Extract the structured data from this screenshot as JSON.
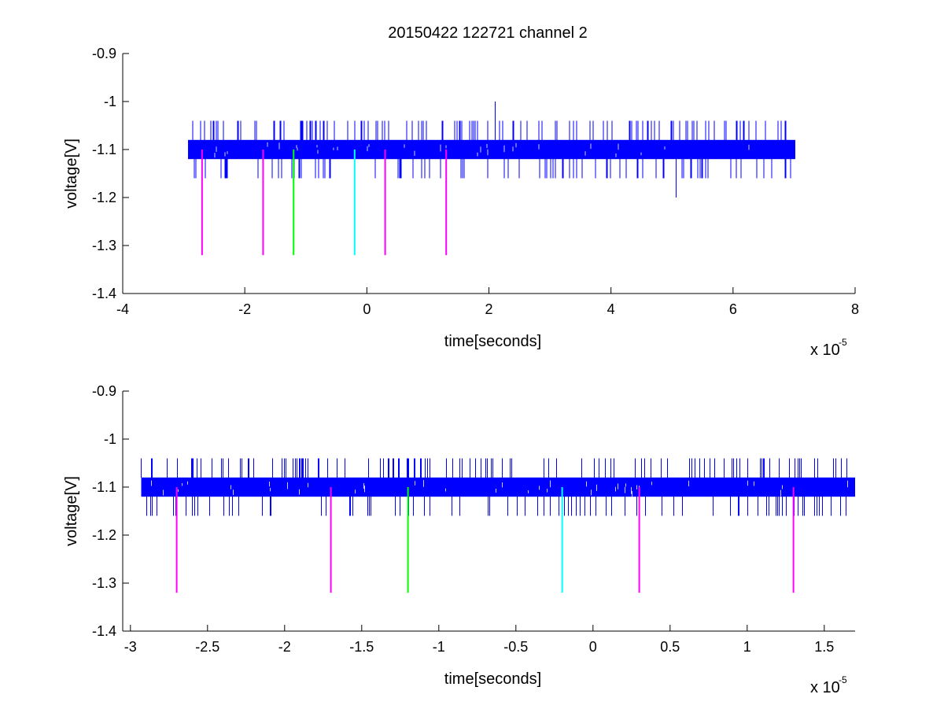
{
  "figure": {
    "title": "20150422 122721 channel 2"
  },
  "colors": {
    "signal": "#0000ff",
    "magenta": "#ff00ff",
    "green": "#00ff00",
    "cyan": "#00ffff",
    "axes": "#000000",
    "background": "#ffffff"
  },
  "chart_data": [
    {
      "type": "line",
      "title": "20150422 122721 channel 2",
      "xlabel": "time[seconds]",
      "ylabel": "voltage[V]",
      "x_multiplier": "x 10",
      "x_exponent": "-5",
      "xlim": [
        -4e-05,
        8e-05
      ],
      "ylim": [
        -1.4,
        -0.9
      ],
      "xticks": [
        -4e-05,
        -2e-05,
        0,
        2e-05,
        4e-05,
        6e-05,
        8e-05
      ],
      "xtick_labels": [
        "-4",
        "-2",
        "0",
        "2",
        "4",
        "6",
        "8"
      ],
      "yticks": [
        -1.4,
        -1.3,
        -1.2,
        -1.1,
        -1.0,
        -0.9
      ],
      "ytick_labels": [
        "-1.4",
        "-1.3",
        "-1.2",
        "-1.1",
        "-1",
        "-0.9"
      ],
      "grid": false,
      "signal": {
        "x_range": [
          -2.93e-05,
          7.02e-05
        ],
        "band": [
          -1.12,
          -1.08
        ],
        "spike_range": [
          -1.16,
          -1.04
        ],
        "outliers": [
          {
            "x": 2.1e-05,
            "y": -1.0
          },
          {
            "x": 5.07e-05,
            "y": -1.2
          }
        ]
      },
      "markers": [
        {
          "x": -2.7e-05,
          "y_top": -1.1,
          "y_bottom": -1.32,
          "color": "magenta"
        },
        {
          "x": -1.7e-05,
          "y_top": -1.1,
          "y_bottom": -1.32,
          "color": "magenta"
        },
        {
          "x": -1.2e-05,
          "y_top": -1.1,
          "y_bottom": -1.32,
          "color": "green"
        },
        {
          "x": -2e-06,
          "y_top": -1.1,
          "y_bottom": -1.32,
          "color": "cyan"
        },
        {
          "x": 3e-06,
          "y_top": -1.1,
          "y_bottom": -1.32,
          "color": "magenta"
        },
        {
          "x": 1.3e-05,
          "y_top": -1.1,
          "y_bottom": -1.32,
          "color": "magenta"
        }
      ]
    },
    {
      "type": "line",
      "xlabel": "time[seconds]",
      "ylabel": "voltage[V]",
      "x_multiplier": "x 10",
      "x_exponent": "-5",
      "xlim": [
        -3.05e-05,
        1.7e-05
      ],
      "ylim": [
        -1.4,
        -0.9
      ],
      "xticks": [
        -3e-05,
        -2.5e-05,
        -2e-05,
        -1.5e-05,
        -1e-05,
        -5e-06,
        0,
        5e-06,
        1e-05,
        1.5e-05
      ],
      "xtick_labels": [
        "-3",
        "-2.5",
        "-2",
        "-1.5",
        "-1",
        "-0.5",
        "0",
        "0.5",
        "1",
        "1.5"
      ],
      "yticks": [
        -1.4,
        -1.3,
        -1.2,
        -1.1,
        -1.0,
        -0.9
      ],
      "ytick_labels": [
        "-1.4",
        "-1.3",
        "-1.2",
        "-1.1",
        "-1",
        "-0.9"
      ],
      "grid": false,
      "signal": {
        "x_range": [
          -2.93e-05,
          1.7e-05
        ],
        "band": [
          -1.12,
          -1.08
        ],
        "spike_range": [
          -1.16,
          -1.04
        ],
        "outliers": []
      },
      "markers": [
        {
          "x": -2.7e-05,
          "y_top": -1.1,
          "y_bottom": -1.32,
          "color": "magenta"
        },
        {
          "x": -1.7e-05,
          "y_top": -1.1,
          "y_bottom": -1.32,
          "color": "magenta"
        },
        {
          "x": -1.2e-05,
          "y_top": -1.1,
          "y_bottom": -1.32,
          "color": "green"
        },
        {
          "x": -2e-06,
          "y_top": -1.1,
          "y_bottom": -1.32,
          "color": "cyan"
        },
        {
          "x": 3e-06,
          "y_top": -1.1,
          "y_bottom": -1.32,
          "color": "magenta"
        },
        {
          "x": 1.3e-05,
          "y_top": -1.1,
          "y_bottom": -1.32,
          "color": "magenta"
        }
      ]
    }
  ]
}
